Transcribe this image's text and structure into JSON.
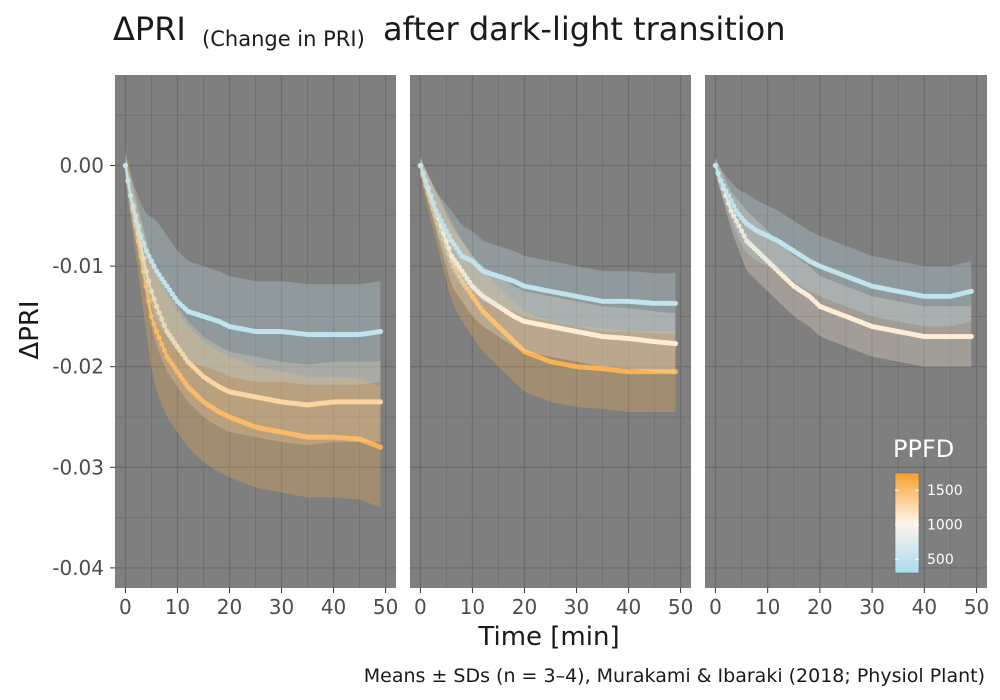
{
  "title": {
    "main_prefix": "ΔPRI",
    "sub": "(Change in PRI)",
    "main_suffix": "after dark-light transition"
  },
  "caption": "Means ± SDs (n = 3–4), Murakami & Ibaraki (2018; Physiol Plant)",
  "colors": {
    "panel_bg": "#7f7f7f",
    "grid": "#6d6d6d",
    "high": "#f7a02c",
    "mid": "#fff5ea",
    "low": "#a8dcf0"
  },
  "legend": {
    "title": "PPFD",
    "ticks": [
      "1500",
      "1000",
      "500"
    ],
    "tick_values": [
      1500,
      1000,
      500
    ],
    "range": [
      300,
      1750
    ]
  },
  "chart_data": {
    "type": "line",
    "title": "ΔPRI (Change in PRI) after dark-light transition",
    "xlabel": "Time [min]",
    "ylabel": "ΔPRI",
    "xlim": [
      -2,
      52
    ],
    "ylim": [
      -0.042,
      0.009
    ],
    "x_ticks": [
      0,
      10,
      20,
      30,
      40,
      50
    ],
    "x_tick_labels": [
      "0",
      "10",
      "20",
      "30",
      "40",
      "50"
    ],
    "y_ticks": [
      0.0,
      -0.01,
      -0.02,
      -0.03,
      -0.04
    ],
    "y_tick_labels": [
      "0.00",
      "-0.01",
      "-0.02",
      "-0.03",
      "-0.04"
    ],
    "grid": true,
    "legend_placement": "bottom-right",
    "panels": [
      {
        "series": [
          {
            "ppfd": 1600,
            "x": [
              0,
              1,
              2,
              3,
              4,
              5,
              6,
              8,
              10,
              12,
              15,
              18,
              20,
              25,
              30,
              35,
              40,
              45,
              49
            ],
            "y": [
              0.0,
              -0.003,
              -0.006,
              -0.009,
              -0.012,
              -0.015,
              -0.0165,
              -0.019,
              -0.0205,
              -0.022,
              -0.0235,
              -0.0245,
              -0.025,
              -0.026,
              -0.0265,
              -0.027,
              -0.027,
              -0.0272,
              -0.028
            ],
            "sd": 0.006
          },
          {
            "ppfd": 1300,
            "x": [
              0,
              1,
              2,
              3,
              4,
              5,
              6,
              8,
              10,
              12,
              15,
              18,
              20,
              25,
              30,
              35,
              40,
              45,
              49
            ],
            "y": [
              0.0,
              -0.003,
              -0.0055,
              -0.008,
              -0.0105,
              -0.0125,
              -0.014,
              -0.0165,
              -0.018,
              -0.0195,
              -0.021,
              -0.022,
              -0.0225,
              -0.023,
              -0.0235,
              -0.0238,
              -0.0235,
              -0.0235,
              -0.0235
            ],
            "sd": 0.004
          },
          {
            "ppfd": 500,
            "x": [
              0,
              1,
              2,
              3,
              4,
              5,
              6,
              8,
              10,
              12,
              15,
              18,
              20,
              25,
              30,
              35,
              40,
              45,
              49
            ],
            "y": [
              0.0,
              -0.003,
              -0.005,
              -0.007,
              -0.0085,
              -0.0095,
              -0.0105,
              -0.012,
              -0.0135,
              -0.0145,
              -0.015,
              -0.0155,
              -0.016,
              -0.0165,
              -0.0165,
              -0.0168,
              -0.0168,
              -0.0168,
              -0.0165
            ],
            "sd": 0.005
          }
        ]
      },
      {
        "series": [
          {
            "ppfd": 1600,
            "x": [
              0,
              1,
              2,
              3,
              4,
              5,
              6,
              8,
              10,
              12,
              15,
              18,
              20,
              25,
              30,
              35,
              40,
              45,
              49
            ],
            "y": [
              0.0,
              -0.002,
              -0.0035,
              -0.005,
              -0.0065,
              -0.008,
              -0.0095,
              -0.0115,
              -0.013,
              -0.0145,
              -0.016,
              -0.0175,
              -0.0185,
              -0.0195,
              -0.02,
              -0.0202,
              -0.0205,
              -0.0205,
              -0.0205
            ],
            "sd": 0.004
          },
          {
            "ppfd": 1100,
            "x": [
              0,
              1,
              2,
              3,
              4,
              5,
              6,
              8,
              10,
              12,
              15,
              18,
              20,
              25,
              30,
              35,
              40,
              45,
              49
            ],
            "y": [
              0.0,
              -0.0015,
              -0.003,
              -0.0045,
              -0.006,
              -0.0075,
              -0.009,
              -0.0105,
              -0.012,
              -0.013,
              -0.014,
              -0.015,
              -0.0155,
              -0.016,
              -0.0165,
              -0.017,
              -0.0172,
              -0.0175,
              -0.0177
            ],
            "sd": 0.003
          },
          {
            "ppfd": 500,
            "x": [
              0,
              1,
              2,
              3,
              4,
              5,
              6,
              8,
              10,
              12,
              15,
              18,
              20,
              25,
              30,
              35,
              40,
              45,
              49
            ],
            "y": [
              0.0,
              -0.0015,
              -0.003,
              -0.0045,
              -0.0055,
              -0.0065,
              -0.0075,
              -0.009,
              -0.0095,
              -0.0105,
              -0.011,
              -0.0115,
              -0.012,
              -0.0125,
              -0.013,
              -0.0135,
              -0.0135,
              -0.0137,
              -0.0137
            ],
            "sd": 0.003
          }
        ]
      },
      {
        "series": [
          {
            "ppfd": 1100,
            "x": [
              0,
              1,
              2,
              3,
              4,
              5,
              6,
              8,
              10,
              12,
              15,
              18,
              20,
              25,
              30,
              35,
              40,
              45,
              49
            ],
            "y": [
              0.0,
              -0.0015,
              -0.003,
              -0.0045,
              -0.0055,
              -0.0065,
              -0.0075,
              -0.0085,
              -0.0095,
              -0.0105,
              -0.012,
              -0.013,
              -0.014,
              -0.015,
              -0.016,
              -0.0165,
              -0.017,
              -0.017,
              -0.017
            ],
            "sd": 0.003
          },
          {
            "ppfd": 500,
            "x": [
              0,
              1,
              2,
              3,
              4,
              5,
              6,
              8,
              10,
              12,
              15,
              18,
              20,
              25,
              30,
              35,
              40,
              45,
              49
            ],
            "y": [
              0.0,
              -0.0015,
              -0.0025,
              -0.0035,
              -0.0045,
              -0.0052,
              -0.0058,
              -0.0065,
              -0.007,
              -0.0075,
              -0.0085,
              -0.0095,
              -0.01,
              -0.011,
              -0.012,
              -0.0125,
              -0.013,
              -0.013,
              -0.0125
            ],
            "sd": 0.003
          }
        ]
      }
    ]
  }
}
